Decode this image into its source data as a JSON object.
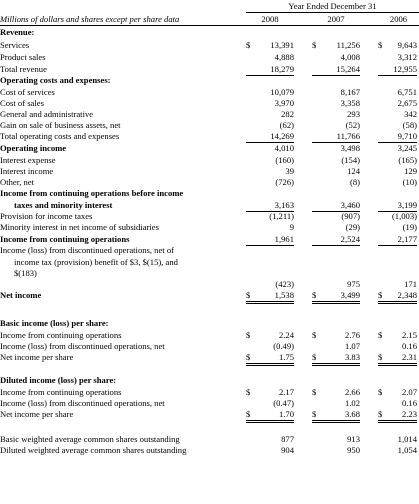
{
  "header": {
    "period_title": "Year Ended December 31",
    "units_note": "Millions of dollars and shares except per share data",
    "years": [
      "2008",
      "2007",
      "2006"
    ]
  },
  "rows": [
    {
      "label": "Revenue:",
      "bold": true
    },
    {
      "label": "Services",
      "v": [
        "13,391",
        "11,256",
        "9,643"
      ],
      "dollar": true
    },
    {
      "label": "Product sales",
      "v": [
        "4,888",
        "4,008",
        "3,312"
      ]
    },
    {
      "label": "Total revenue",
      "v": [
        "18,279",
        "15,264",
        "12,955"
      ],
      "line": true
    },
    {
      "label": "Operating costs and expenses:",
      "bold": true
    },
    {
      "label": "Cost of services",
      "v": [
        "10,079",
        "8,167",
        "6,751"
      ]
    },
    {
      "label": "Cost of sales",
      "v": [
        "3,970",
        "3,358",
        "2,675"
      ]
    },
    {
      "label": "General and administrative",
      "v": [
        "282",
        "293",
        "342"
      ]
    },
    {
      "label": "Gain on sale of business assets, net",
      "v": [
        "(62)",
        "(52)",
        "(58)"
      ]
    },
    {
      "label": "Total operating costs and expenses",
      "v": [
        "14,269",
        "11,766",
        "9,710"
      ],
      "line": true
    },
    {
      "label": "Operating income",
      "bold": true,
      "v": [
        "4,010",
        "3,498",
        "3,245"
      ]
    },
    {
      "label": "Interest expense",
      "v": [
        "(160)",
        "(154)",
        "(165)"
      ]
    },
    {
      "label": "Interest income",
      "v": [
        "39",
        "124",
        "129"
      ]
    },
    {
      "label": "Other, net",
      "v": [
        "(726)",
        "(8)",
        "(10)"
      ]
    },
    {
      "label": "Income from continuing operations before income",
      "bold": true
    },
    {
      "label": "taxes and minority interest",
      "bold": true,
      "indent": true,
      "v": [
        "3,163",
        "3,460",
        "3,199"
      ],
      "line": true
    },
    {
      "label": "Provision for income taxes",
      "v": [
        "(1,211)",
        "(907)",
        "(1,003)"
      ]
    },
    {
      "label": "Minority interest in net income of subsidiaries",
      "v": [
        "9",
        "(29)",
        "(19)"
      ]
    },
    {
      "label": "Income from continuing operations",
      "bold": true,
      "v": [
        "1,961",
        "2,524",
        "2,177"
      ],
      "line": true
    },
    {
      "label": "Income (loss) from discontinued operations, net of"
    },
    {
      "label": "income tax (provision) benefit of $3, $(15), and",
      "indent": true
    },
    {
      "label": "$(183)",
      "indent": true
    },
    {
      "label": "",
      "v": [
        "(423)",
        "975",
        "171"
      ]
    },
    {
      "label": "Net income",
      "bold": true,
      "v": [
        "1,538",
        "3,499",
        "2,348"
      ],
      "dollar": true,
      "line": true,
      "double": true
    },
    {
      "label": ""
    },
    {
      "label": "Basic income (loss) per share:",
      "bold": true
    },
    {
      "label": "Income from continuing operations",
      "v": [
        "2.24",
        "2.76",
        "2.15"
      ],
      "dollar": true
    },
    {
      "label": "Income (loss) from discontinued operations, net",
      "v": [
        "(0.49)",
        "1.07",
        "0.16"
      ]
    },
    {
      "label": "Net income per share",
      "v": [
        "1.75",
        "3.83",
        "2.31"
      ],
      "dollar": true,
      "line": true,
      "double": true
    },
    {
      "label": ""
    },
    {
      "label": "Diluted income (loss) per share:",
      "bold": true
    },
    {
      "label": "Income from continuing operations",
      "v": [
        "2.17",
        "2.66",
        "2.07"
      ],
      "dollar": true
    },
    {
      "label": "Income (loss) from discontinued operations, net",
      "v": [
        "(0.47)",
        "1.02",
        "0.16"
      ]
    },
    {
      "label": "Net income per share",
      "v": [
        "1.70",
        "3.68",
        "2.23"
      ],
      "dollar": true,
      "line": true,
      "double": true
    },
    {
      "label": ""
    },
    {
      "label": "Basic weighted average common shares outstanding",
      "v": [
        "877",
        "913",
        "1,014"
      ]
    },
    {
      "label": "Diluted weighted average common shares outstanding",
      "v": [
        "904",
        "950",
        "1,054"
      ]
    }
  ]
}
